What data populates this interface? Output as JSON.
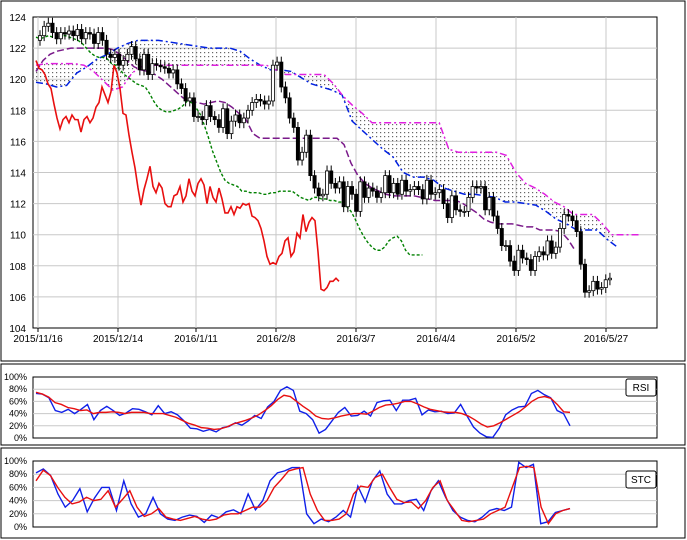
{
  "chart_data": [
    {
      "type": "candlestick",
      "panel": "price",
      "ylim": [
        104,
        124
      ],
      "y_ticks": [
        "104",
        "106",
        "108",
        "110",
        "112",
        "114",
        "116",
        "118",
        "120",
        "122",
        "124"
      ],
      "x_ticks": [
        "2015/11/16",
        "2015/12/14",
        "2016/1/11",
        "2016/2/8",
        "2016/3/7",
        "2016/4/4",
        "2016/5/2",
        "2016/5/27"
      ],
      "grid": true,
      "series": [
        {
          "style": "candles",
          "close": [
            122.8,
            123.4,
            123.6,
            123.0,
            122.6,
            123.0,
            122.9,
            123.1,
            122.8,
            123.2,
            122.6,
            123.0,
            122.9,
            122.3,
            123.0,
            122.5,
            121.6,
            121.4,
            121.6,
            120.9,
            121.2,
            121.6,
            122.1,
            121.3,
            120.6,
            121.6,
            120.3,
            121.0,
            120.9,
            120.8,
            120.7,
            120.4,
            120.6,
            119.7,
            119.4,
            118.6,
            118.8,
            117.6,
            117.6,
            117.4,
            118.3,
            117.6,
            117.4,
            116.9,
            118.1,
            116.5,
            117.3,
            117.7,
            117.2,
            117.5,
            118.0,
            118.5,
            118.7,
            118.6,
            118.4,
            118.6,
            120.9,
            121.1,
            119.5,
            118.8,
            117.5,
            116.9,
            114.8,
            115.3,
            116.4,
            113.8,
            113.0,
            112.5,
            112.6,
            114.1,
            113.3,
            113.0,
            113.4,
            111.8,
            113.1,
            112.6,
            111.5,
            113.4,
            112.4,
            113.0,
            112.8,
            112.4,
            112.7,
            113.8,
            112.7,
            113.3,
            112.6,
            113.5,
            112.8,
            112.9,
            113.1,
            112.9,
            112.3,
            113.5,
            112.6,
            112.7,
            112.9,
            112.0,
            111.1,
            112.5,
            111.6,
            111.5,
            111.5,
            112.4,
            113.1,
            113.0,
            113.1,
            111.6,
            112.4,
            111.2,
            110.4,
            109.3,
            109.3,
            108.3,
            107.7,
            109.0,
            108.5,
            108.4,
            107.7,
            108.6,
            108.9,
            108.7,
            109.6,
            108.8,
            109.2,
            110.4,
            111.3,
            111.2,
            110.9,
            110.2,
            108.1,
            106.3,
            106.4,
            107.0,
            106.5,
            106.6,
            107.1,
            107.2
          ]
        },
        {
          "name": "",
          "style": "solid-red",
          "values": [
            121.2,
            120.7,
            120.6,
            120.3,
            119.7,
            119.4,
            118.4,
            117.5,
            116.8,
            117.4,
            117.6,
            117.2,
            117.7,
            117.4,
            117.4,
            116.6,
            117.4,
            117.6,
            117.2,
            117.5,
            118.2,
            118.5,
            119.5,
            119.0,
            118.5,
            119.2,
            120.9,
            120.4,
            119.4,
            117.8,
            117.7,
            116.4,
            115.3,
            114.3,
            113.0,
            111.9,
            112.9,
            113.6,
            114.4,
            113.1,
            112.7,
            113.3,
            113.0,
            112.0,
            111.8,
            111.8,
            112.5,
            112.6,
            113.1,
            112.1,
            112.5,
            113.6,
            112.8,
            112.5,
            113.3,
            113.6,
            113.2,
            112.0,
            113.1,
            112.4,
            112.1,
            113.0,
            112.3,
            111.4,
            111.4,
            111.8,
            111.3,
            111.8,
            111.7,
            112.0,
            111.9,
            112.0,
            111.2,
            111.1,
            110.9,
            110.4,
            109.6,
            108.6,
            108.1,
            108.2,
            108.1,
            108.6,
            108.8,
            109.6,
            109.8,
            108.6,
            108.9,
            110.1,
            109.8,
            111.3,
            110.2,
            110.8,
            111.1,
            110.9,
            108.9,
            106.5,
            106.4,
            106.6,
            107.0,
            107.0,
            107.2,
            107.0
          ]
        },
        {
          "name": "",
          "style": "dashed-green",
          "values": [
            122.7,
            122.6,
            122.7,
            122.8,
            122.7,
            122.6,
            122.8,
            122.8,
            122.7,
            122.6,
            122.5,
            122.3,
            122.0,
            121.7,
            121.5,
            121.4,
            121.4,
            121.3,
            121.0,
            120.9,
            120.6,
            120.3,
            120.1,
            119.9,
            119.7,
            119.6,
            119.5,
            119.1,
            118.6,
            118.2,
            118.0,
            117.9,
            117.9,
            118.0,
            118.1,
            118.3,
            118.6,
            118.5,
            118.2,
            117.8,
            117.1,
            116.3,
            115.4,
            114.7,
            114.0,
            113.5,
            113.3,
            113.2,
            113.1,
            112.8,
            112.8,
            112.7,
            112.7,
            112.7,
            112.6,
            112.6,
            112.7,
            112.7,
            112.8,
            112.8,
            112.8,
            112.8,
            112.6,
            112.4,
            112.3,
            112.2,
            112.4,
            112.4,
            112.3,
            112.3,
            112.2,
            112.2,
            112.1,
            112.1,
            111.8,
            111.5,
            111.0,
            110.4,
            109.9,
            109.5,
            109.2,
            109.0,
            109.0,
            109.2,
            109.6,
            109.8,
            109.9,
            109.6,
            109.0,
            108.7,
            108.7,
            108.7,
            108.7
          ]
        },
        {
          "name": "",
          "style": "dashdot-purple",
          "values": [
            120.5,
            121.2,
            121.6,
            121.8,
            121.9,
            122.0,
            122.0,
            122.0,
            122.0,
            122.0,
            122.0,
            121.9,
            121.6,
            121.2,
            120.8,
            120.6,
            120.5,
            120.3,
            120.0,
            119.6,
            119.2,
            118.8,
            118.6,
            118.5,
            118.4,
            118.5,
            118.6,
            118.5,
            118.2,
            117.8,
            117.4,
            116.5,
            116.2,
            116.2,
            116.2,
            116.2,
            116.2,
            116.2,
            116.2,
            116.2,
            116.2,
            116.2,
            116.2,
            116.2,
            115.8,
            114.6,
            113.8,
            113.3,
            113.0,
            112.8,
            112.6,
            112.5,
            112.5,
            112.5,
            112.5,
            112.4,
            112.3,
            112.2,
            112.2,
            112.2,
            112.2,
            112.0,
            111.7,
            111.4,
            111.0,
            110.8,
            110.7,
            110.7,
            110.7,
            110.6,
            110.5,
            110.5,
            110.3,
            110.3,
            110.3,
            110.2,
            109.7,
            109.0
          ]
        },
        {
          "name": "",
          "style": "dashdot-blue",
          "values": [
            119.8,
            119.7,
            119.5,
            119.6,
            120.4,
            120.8,
            121.3,
            121.6,
            122.0,
            122.3,
            122.5,
            122.5,
            122.5,
            122.4,
            122.3,
            122.2,
            122.1,
            122.0,
            122.0,
            122.0,
            121.8,
            121.3,
            120.9,
            120.6,
            120.6,
            120.5,
            120.1,
            119.7,
            119.5,
            119.3,
            119.0,
            117.3,
            116.7,
            116.1,
            115.5,
            115.0,
            114.0,
            113.7,
            113.7,
            113.5,
            113.0,
            112.8,
            112.6,
            112.6,
            112.5,
            112.4,
            112.1,
            112.1,
            112.0,
            111.9,
            111.5,
            111.0,
            110.7,
            110.3,
            110.3,
            110.3,
            109.7,
            109.2
          ]
        },
        {
          "name": "",
          "style": "dashdot-magenta",
          "values": [
            120.9,
            121.0,
            121.0,
            121.0,
            121.0,
            120.9,
            120.5,
            119.9,
            119.3,
            119.5,
            120.4,
            120.8,
            120.9,
            120.9,
            120.9,
            120.9,
            120.9,
            120.9,
            120.9,
            120.9,
            120.9,
            120.9,
            120.9,
            120.9,
            120.9,
            120.6,
            120.3,
            120.3,
            120.3,
            120.3,
            120.3,
            119.7,
            118.9,
            118.3,
            117.8,
            117.2,
            117.2,
            117.2,
            117.2,
            117.2,
            117.2,
            117.2,
            117.2,
            115.5,
            115.3,
            115.3,
            115.3,
            115.3,
            115.3,
            115.1,
            114.0,
            113.3,
            113.0,
            112.6,
            112.1,
            111.8,
            111.3,
            111.3,
            111.3,
            110.7,
            110.0,
            110.0,
            110.0,
            110.0
          ]
        }
      ]
    },
    {
      "type": "line",
      "panel": "RSI",
      "ylim": [
        0,
        100
      ],
      "y_ticks": [
        "0%",
        "20%",
        "40%",
        "60%",
        "80%",
        "100%"
      ],
      "legend": "RSI",
      "grid": true,
      "series": [
        {
          "name": "",
          "color": "blue",
          "values": [
            73,
            72,
            66,
            45,
            42,
            47,
            40,
            47,
            55,
            30,
            45,
            52,
            45,
            37,
            41,
            48,
            47,
            43,
            38,
            53,
            40,
            43,
            38,
            28,
            16,
            15,
            11,
            14,
            10,
            17,
            19,
            25,
            21,
            28,
            37,
            32,
            51,
            60,
            78,
            84,
            78,
            44,
            40,
            30,
            8,
            14,
            28,
            42,
            50,
            36,
            37,
            44,
            36,
            58,
            61,
            62,
            45,
            62,
            62,
            65,
            38,
            46,
            43,
            44,
            40,
            41,
            55,
            36,
            18,
            8,
            2,
            1,
            16,
            38,
            46,
            51,
            52,
            73,
            78,
            71,
            66,
            45,
            40,
            20
          ]
        },
        {
          "name": "",
          "color": "red",
          "values": [
            75,
            72,
            67,
            58,
            55,
            50,
            48,
            45,
            46,
            40,
            42,
            42,
            43,
            42,
            40,
            42,
            42,
            42,
            40,
            40,
            40,
            37,
            34,
            29,
            24,
            21,
            17,
            16,
            14,
            15,
            18,
            23,
            26,
            29,
            33,
            38,
            45,
            53,
            63,
            70,
            68,
            60,
            52,
            45,
            36,
            32,
            31,
            33,
            36,
            38,
            40,
            40,
            39,
            44,
            50,
            54,
            55,
            57,
            60,
            60,
            56,
            51,
            47,
            45,
            43,
            42,
            42,
            40,
            36,
            30,
            23,
            18,
            20,
            25,
            31,
            37,
            43,
            51,
            60,
            66,
            68,
            65,
            55,
            43,
            42
          ]
        }
      ]
    },
    {
      "type": "line",
      "panel": "STC",
      "ylim": [
        0,
        100
      ],
      "y_ticks": [
        "0%",
        "20%",
        "40%",
        "60%",
        "80%",
        "100%"
      ],
      "legend": "STC",
      "grid": true,
      "series": [
        {
          "name": "",
          "color": "blue",
          "values": [
            82,
            88,
            78,
            50,
            30,
            40,
            58,
            23,
            44,
            60,
            60,
            25,
            70,
            35,
            15,
            20,
            45,
            20,
            12,
            10,
            15,
            18,
            16,
            7,
            18,
            14,
            23,
            26,
            20,
            50,
            26,
            40,
            70,
            82,
            85,
            90,
            90,
            20,
            5,
            12,
            8,
            15,
            25,
            15,
            62,
            38,
            70,
            85,
            50,
            35,
            35,
            40,
            42,
            25,
            55,
            70,
            45,
            25,
            15,
            10,
            8,
            15,
            25,
            28,
            25,
            30,
            98,
            90,
            95,
            5,
            8,
            22,
            25,
            28
          ]
        },
        {
          "name": "",
          "color": "red",
          "values": [
            70,
            86,
            78,
            60,
            45,
            35,
            38,
            45,
            40,
            42,
            55,
            30,
            42,
            55,
            30,
            16,
            20,
            28,
            15,
            12,
            10,
            13,
            16,
            12,
            10,
            12,
            18,
            20,
            20,
            25,
            30,
            30,
            40,
            60,
            72,
            85,
            88,
            90,
            50,
            25,
            10,
            10,
            12,
            20,
            50,
            62,
            60,
            75,
            80,
            60,
            42,
            37,
            38,
            28,
            40,
            60,
            70,
            40,
            25,
            10,
            8,
            10,
            12,
            20,
            25,
            30,
            60,
            90,
            92,
            90,
            30,
            5,
            20,
            25,
            28
          ]
        }
      ]
    }
  ]
}
